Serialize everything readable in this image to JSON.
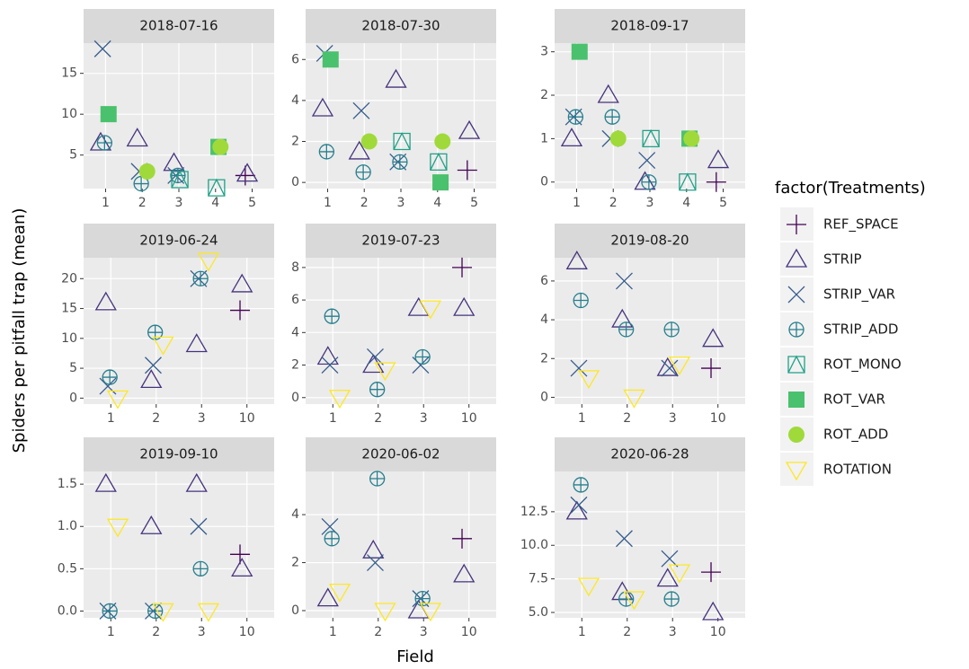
{
  "x_label": "Field",
  "y_label": "Spiders per pitfall trap (mean)",
  "legend": {
    "title": "factor(Treatments)",
    "series": [
      {
        "name": "REF_SPACE",
        "color": "#440154",
        "shape": "plus"
      },
      {
        "name": "STRIP",
        "color": "#46337e",
        "shape": "triangle"
      },
      {
        "name": "STRIP_VAR",
        "color": "#365c8d",
        "shape": "cross"
      },
      {
        "name": "STRIP_ADD",
        "color": "#277f8e",
        "shape": "circle-plus"
      },
      {
        "name": "ROT_MONO",
        "color": "#1fa187",
        "shape": "square-triangle"
      },
      {
        "name": "ROT_VAR",
        "color": "#4ac16d",
        "shape": "filled-square"
      },
      {
        "name": "ROT_ADD",
        "color": "#9fda3a",
        "shape": "filled-circle"
      },
      {
        "name": "ROTATION",
        "color": "#fde725",
        "shape": "inverted-triangle"
      }
    ]
  },
  "chart_data": [
    {
      "type": "scatter",
      "title": "2018-07-16",
      "categories": [
        "1",
        "2",
        "3",
        "4",
        "5"
      ],
      "ylim": [
        0.9,
        18.7
      ],
      "yticks": [
        5,
        10,
        15
      ],
      "series": [
        {
          "values": [
            null,
            null,
            null,
            null,
            2.5
          ]
        },
        {
          "values": [
            6.5,
            7,
            4,
            null,
            2.7
          ]
        },
        {
          "values": [
            18,
            3,
            2.5,
            null,
            null
          ]
        },
        {
          "values": [
            6.5,
            1.5,
            2.5,
            null,
            null
          ]
        },
        {
          "values": [
            null,
            null,
            2,
            1,
            null
          ]
        },
        {
          "values": [
            10,
            null,
            null,
            6,
            null
          ]
        },
        {
          "values": [
            null,
            3,
            null,
            6,
            null
          ]
        },
        {
          "values": [
            null,
            null,
            null,
            null,
            null
          ]
        }
      ]
    },
    {
      "type": "scatter",
      "title": "2018-07-30",
      "categories": [
        "1",
        "2",
        "3",
        "4",
        "5"
      ],
      "ylim": [
        -0.3,
        6.8
      ],
      "yticks": [
        0,
        2,
        4,
        6
      ],
      "series": [
        {
          "values": [
            null,
            null,
            null,
            null,
            0.6
          ]
        },
        {
          "values": [
            3.6,
            1.5,
            5,
            null,
            2.5
          ]
        },
        {
          "values": [
            6.3,
            3.5,
            1,
            null,
            null
          ]
        },
        {
          "values": [
            1.5,
            0.5,
            1,
            null,
            null
          ]
        },
        {
          "values": [
            null,
            null,
            2,
            1,
            null
          ]
        },
        {
          "values": [
            6,
            null,
            null,
            0,
            null
          ]
        },
        {
          "values": [
            null,
            2,
            null,
            2,
            null
          ]
        },
        {
          "values": [
            null,
            null,
            null,
            null,
            null
          ]
        }
      ]
    },
    {
      "type": "scatter",
      "title": "2018-09-17",
      "categories": [
        "1",
        "2",
        "3",
        "4",
        "5"
      ],
      "ylim": [
        -0.15,
        3.2
      ],
      "yticks": [
        0,
        1,
        2,
        3
      ],
      "series": [
        {
          "values": [
            null,
            null,
            null,
            null,
            0
          ]
        },
        {
          "values": [
            1,
            2,
            0,
            null,
            0.5
          ]
        },
        {
          "values": [
            1.5,
            1,
            0.5,
            null,
            null
          ]
        },
        {
          "values": [
            1.5,
            1.5,
            0,
            null,
            null
          ]
        },
        {
          "values": [
            null,
            null,
            1,
            0,
            null
          ]
        },
        {
          "values": [
            3,
            null,
            null,
            1,
            null
          ]
        },
        {
          "values": [
            null,
            1,
            null,
            1,
            null
          ]
        },
        {
          "values": [
            null,
            null,
            null,
            null,
            null
          ]
        }
      ]
    },
    {
      "type": "scatter",
      "title": "2019-06-24",
      "categories": [
        "1",
        "2",
        "3",
        "10"
      ],
      "ylim": [
        -1,
        23.5
      ],
      "yticks": [
        0,
        5,
        10,
        15,
        20
      ],
      "series": [
        {
          "values": [
            null,
            null,
            null,
            14.7
          ]
        },
        {
          "values": [
            16,
            3,
            9,
            19
          ]
        },
        {
          "values": [
            2,
            5.5,
            20,
            null
          ]
        },
        {
          "values": [
            3.5,
            11,
            20,
            null
          ]
        },
        {
          "values": [
            null,
            null,
            null,
            null
          ]
        },
        {
          "values": [
            null,
            null,
            null,
            null
          ]
        },
        {
          "values": [
            null,
            null,
            null,
            null
          ]
        },
        {
          "values": [
            0,
            9,
            23,
            null
          ]
        }
      ]
    },
    {
      "type": "scatter",
      "title": "2019-07-23",
      "categories": [
        "1",
        "2",
        "3",
        "10"
      ],
      "ylim": [
        -0.4,
        8.6
      ],
      "yticks": [
        0,
        2,
        4,
        6,
        8
      ],
      "series": [
        {
          "values": [
            null,
            null,
            null,
            8
          ]
        },
        {
          "values": [
            2.5,
            2,
            5.5,
            5.5
          ]
        },
        {
          "values": [
            2,
            2.5,
            2,
            null
          ]
        },
        {
          "values": [
            5,
            0.5,
            2.5,
            null
          ]
        },
        {
          "values": [
            null,
            null,
            null,
            null
          ]
        },
        {
          "values": [
            null,
            null,
            null,
            null
          ]
        },
        {
          "values": [
            null,
            null,
            null,
            null
          ]
        },
        {
          "values": [
            0,
            1.7,
            5.5,
            null
          ]
        }
      ]
    },
    {
      "type": "scatter",
      "title": "2019-08-20",
      "categories": [
        "1",
        "2",
        "3",
        "10"
      ],
      "ylim": [
        -0.35,
        7.2
      ],
      "yticks": [
        0,
        2,
        4,
        6
      ],
      "series": [
        {
          "values": [
            null,
            null,
            null,
            1.5
          ]
        },
        {
          "values": [
            7,
            4,
            1.5,
            3
          ]
        },
        {
          "values": [
            1.5,
            6,
            1.5,
            null
          ]
        },
        {
          "values": [
            5,
            3.5,
            3.5,
            null
          ]
        },
        {
          "values": [
            null,
            null,
            null,
            null
          ]
        },
        {
          "values": [
            null,
            null,
            null,
            null
          ]
        },
        {
          "values": [
            null,
            null,
            null,
            null
          ]
        },
        {
          "values": [
            1,
            0,
            1.7,
            null
          ]
        }
      ]
    },
    {
      "type": "scatter",
      "title": "2019-09-10",
      "categories": [
        "1",
        "2",
        "3",
        "10"
      ],
      "ylim": [
        -0.08,
        1.65
      ],
      "yticks": [
        {
          "value": 0,
          "label": "0.0"
        },
        0.5,
        {
          "value": 1,
          "label": "1.0"
        },
        1.5
      ],
      "series": [
        {
          "values": [
            null,
            null,
            null,
            0.67
          ]
        },
        {
          "values": [
            1.5,
            1,
            1.5,
            0.5
          ]
        },
        {
          "values": [
            0,
            0,
            1,
            null
          ]
        },
        {
          "values": [
            0,
            0,
            0.5,
            null
          ]
        },
        {
          "values": [
            null,
            null,
            null,
            null
          ]
        },
        {
          "values": [
            null,
            null,
            null,
            null
          ]
        },
        {
          "values": [
            null,
            null,
            null,
            null
          ]
        },
        {
          "values": [
            1,
            0,
            0,
            null
          ]
        }
      ]
    },
    {
      "type": "scatter",
      "title": "2020-06-02",
      "categories": [
        "1",
        "2",
        "3",
        "10"
      ],
      "ylim": [
        -0.3,
        5.8
      ],
      "yticks": [
        0,
        2,
        4
      ],
      "series": [
        {
          "values": [
            null,
            null,
            null,
            3
          ]
        },
        {
          "values": [
            0.5,
            2.5,
            0,
            1.5
          ]
        },
        {
          "values": [
            3.5,
            2,
            0.5,
            null
          ]
        },
        {
          "values": [
            3,
            5.5,
            0.5,
            null
          ]
        },
        {
          "values": [
            null,
            null,
            null,
            null
          ]
        },
        {
          "values": [
            null,
            null,
            null,
            null
          ]
        },
        {
          "values": [
            null,
            null,
            null,
            null
          ]
        },
        {
          "values": [
            0.8,
            0,
            0,
            null
          ]
        }
      ]
    },
    {
      "type": "scatter",
      "title": "2020-06-28",
      "categories": [
        "1",
        "2",
        "3",
        "10"
      ],
      "ylim": [
        4.6,
        15.5
      ],
      "yticks": [
        {
          "value": 5,
          "label": "5.0"
        },
        7.5,
        {
          "value": 10,
          "label": "10.0"
        },
        12.5
      ],
      "series": [
        {
          "values": [
            null,
            null,
            null,
            8
          ]
        },
        {
          "values": [
            12.5,
            6.5,
            7.5,
            5
          ]
        },
        {
          "values": [
            13,
            10.5,
            9,
            null
          ]
        },
        {
          "values": [
            14.5,
            6,
            6,
            null
          ]
        },
        {
          "values": [
            null,
            null,
            null,
            null
          ]
        },
        {
          "values": [
            null,
            null,
            null,
            null
          ]
        },
        {
          "values": [
            null,
            null,
            null,
            null
          ]
        },
        {
          "values": [
            7,
            6,
            8,
            null
          ]
        }
      ]
    }
  ]
}
